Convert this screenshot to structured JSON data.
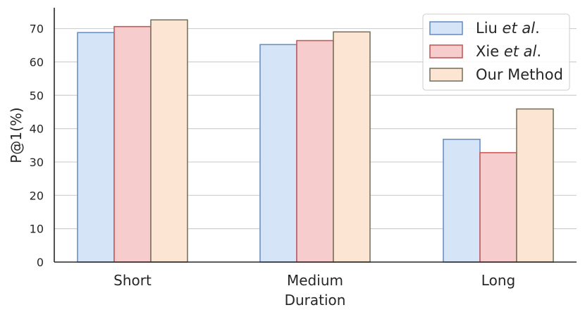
{
  "chart_data": {
    "type": "bar",
    "categories": [
      "Short",
      "Medium",
      "Long"
    ],
    "xlabel": "Duration",
    "ylabel": "P@1(%)",
    "ylim": [
      0,
      76
    ],
    "yticks": [
      0,
      10,
      20,
      30,
      40,
      50,
      60,
      70
    ],
    "grid": "horizontal",
    "legend_position": "top-right",
    "series": [
      {
        "name": "Liu et al.",
        "name_plain": "Liu ",
        "name_italic": "et al",
        "name_suffix": ".",
        "values": [
          68.8,
          65.2,
          36.8
        ],
        "fill": "#d6e4f8",
        "stroke": "#6a8fc4"
      },
      {
        "name": "Xie et al.",
        "name_plain": "Xie ",
        "name_italic": "et al",
        "name_suffix": ".",
        "values": [
          70.6,
          66.4,
          32.8
        ],
        "fill": "#f6cccc",
        "stroke": "#c45a5a"
      },
      {
        "name": "Our Method",
        "name_plain": "Our Method",
        "name_italic": "",
        "name_suffix": "",
        "values": [
          72.6,
          69.0,
          45.9
        ],
        "fill": "#fde5d3",
        "stroke": "#7a7560"
      }
    ]
  }
}
